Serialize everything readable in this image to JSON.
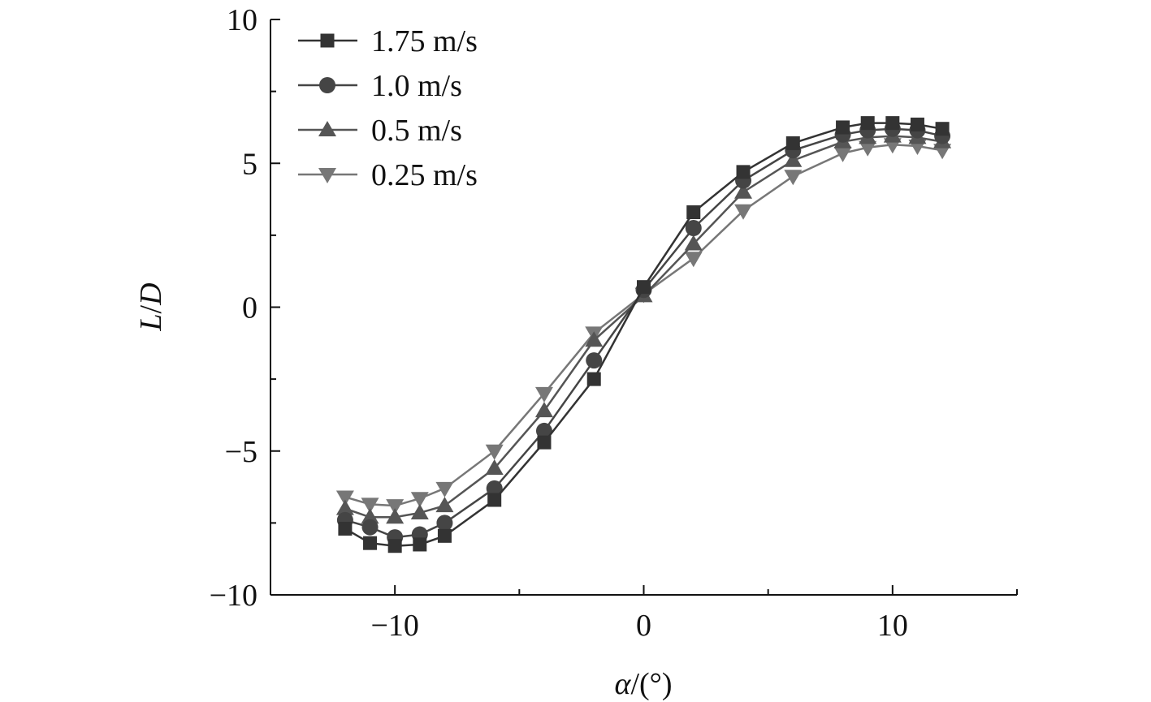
{
  "chart_data": {
    "type": "line",
    "title": "",
    "xlabel_var": "α",
    "xlabel_unit": "/(°)",
    "ylabel_var1": "L",
    "ylabel_sep": "/",
    "ylabel_var2": "D",
    "xlim": [
      -15,
      15
    ],
    "ylim": [
      -10,
      10
    ],
    "xticks": [
      -10,
      0,
      10
    ],
    "xtick_labels": [
      "−10",
      "0",
      "10"
    ],
    "yticks": [
      -10,
      -5,
      0,
      5,
      10
    ],
    "ytick_labels": [
      "−10",
      "−5",
      "0",
      "5",
      "10"
    ],
    "legend_position": "top-left",
    "grid": false,
    "x": [
      -12,
      -11,
      -10,
      -9,
      -8,
      -6,
      -4,
      -2,
      0,
      2,
      4,
      6,
      8,
      9,
      10,
      11,
      12
    ],
    "series": [
      {
        "name": "1.75 m/s",
        "marker": "square",
        "color": "#333333",
        "values": [
          -7.7,
          -8.2,
          -8.3,
          -8.25,
          -7.95,
          -6.7,
          -4.7,
          -2.5,
          0.7,
          3.3,
          4.7,
          5.7,
          6.25,
          6.4,
          6.4,
          6.35,
          6.2
        ]
      },
      {
        "name": "1.0 m/s",
        "marker": "circle",
        "color": "#454545",
        "values": [
          -7.4,
          -7.65,
          -8.0,
          -7.9,
          -7.5,
          -6.3,
          -4.3,
          -1.85,
          0.6,
          2.75,
          4.4,
          5.45,
          6.0,
          6.15,
          6.2,
          6.15,
          5.95
        ]
      },
      {
        "name": "0.5 m/s",
        "marker": "triangle-up",
        "color": "#555555",
        "values": [
          -7.0,
          -7.3,
          -7.3,
          -7.15,
          -6.9,
          -5.6,
          -3.6,
          -1.15,
          0.4,
          2.2,
          4.0,
          5.1,
          5.75,
          5.9,
          5.95,
          5.9,
          5.75
        ]
      },
      {
        "name": "0.25 m/s",
        "marker": "triangle-down",
        "color": "#777777",
        "values": [
          -6.6,
          -6.85,
          -6.9,
          -6.65,
          -6.3,
          -5.0,
          -3.0,
          -0.9,
          0.45,
          1.7,
          3.35,
          4.55,
          5.35,
          5.55,
          5.65,
          5.6,
          5.45
        ]
      }
    ]
  }
}
